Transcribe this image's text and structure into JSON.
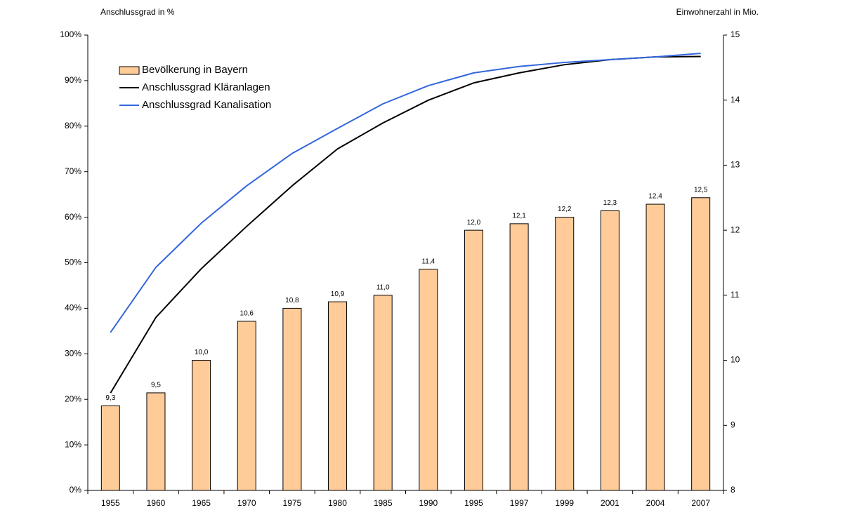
{
  "chart_data": {
    "type": "bar-line",
    "y_axis_label": "Anschlussgrad in %",
    "y2_axis_label": "Einwohnerzahl in Mio.",
    "categories": [
      "1955",
      "1960",
      "1965",
      "1970",
      "1975",
      "1980",
      "1985",
      "1990",
      "1995",
      "1997",
      "1999",
      "2001",
      "2004",
      "2007"
    ],
    "ylim": [
      0,
      100
    ],
    "yticks": [
      {
        "value": 0,
        "label": "0%"
      },
      {
        "value": 10,
        "label": "10%"
      },
      {
        "value": 20,
        "label": "20%"
      },
      {
        "value": 30,
        "label": "30%"
      },
      {
        "value": 40,
        "label": "40%"
      },
      {
        "value": 50,
        "label": "50%"
      },
      {
        "value": 60,
        "label": "60%"
      },
      {
        "value": 70,
        "label": "70%"
      },
      {
        "value": 80,
        "label": "80%"
      },
      {
        "value": 90,
        "label": "90%"
      },
      {
        "value": 100,
        "label": "100%"
      }
    ],
    "y2lim": [
      8,
      15
    ],
    "y2ticks": [
      8,
      9,
      10,
      11,
      12,
      13,
      14,
      15
    ],
    "legend_position": "upper left",
    "series": [
      {
        "name": "Bevölkerung in Bayern",
        "type": "bar",
        "axis": "y2",
        "color": "#ffcc99",
        "values": [
          9.3,
          9.5,
          10.0,
          10.6,
          10.8,
          10.9,
          11.0,
          11.4,
          12.0,
          12.1,
          12.2,
          12.3,
          12.4,
          12.5
        ],
        "value_labels": [
          "9,3",
          "9,5",
          "10,0",
          "10,6",
          "10,8",
          "10,9",
          "11,0",
          "11,4",
          "12,0",
          "12,1",
          "12,2",
          "12,3",
          "12,4",
          "12,5"
        ]
      },
      {
        "name": "Anschlussgrad Kläranlagen",
        "type": "line",
        "color": "#000000",
        "values": [
          21.4,
          38,
          48.7,
          58,
          66.9,
          75,
          80.7,
          85.7,
          89.5,
          91.7,
          93.5,
          94.6,
          95.2,
          95.3
        ]
      },
      {
        "name": "Anschlussgrad Kanalisation",
        "type": "line",
        "color": "#3366dd",
        "values": [
          34.7,
          49,
          58.7,
          66.9,
          74,
          79.5,
          84.9,
          88.9,
          91.7,
          93.1,
          94,
          94.6,
          95.2,
          96
        ]
      }
    ]
  }
}
